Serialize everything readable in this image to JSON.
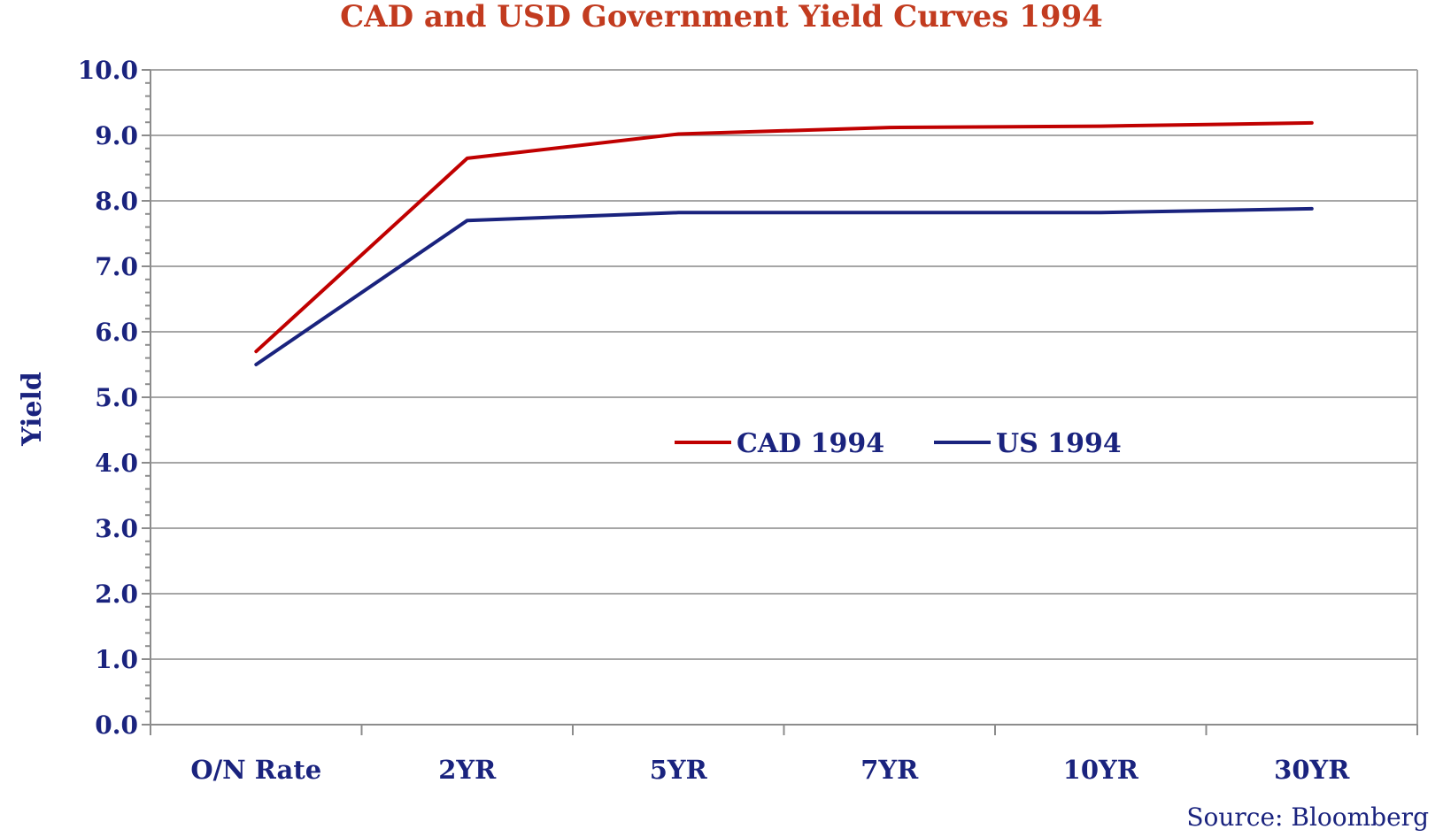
{
  "chart_data": {
    "type": "line",
    "title": "CAD and USD Government Yield Curves 1994",
    "ylabel": "Yield",
    "xlabel": "",
    "categories": [
      "O/N Rate",
      "2YR",
      "5YR",
      "7YR",
      "10YR",
      "30YR"
    ],
    "ylim": [
      0,
      10
    ],
    "yticks": [
      "0.0",
      "1.0",
      "2.0",
      "3.0",
      "4.0",
      "5.0",
      "6.0",
      "7.0",
      "8.0",
      "9.0",
      "10.0"
    ],
    "series": [
      {
        "name": "CAD 1994",
        "color": "#c00000",
        "values": [
          5.7,
          8.65,
          9.02,
          9.12,
          9.14,
          9.19
        ]
      },
      {
        "name": "US 1994",
        "color": "#1a237e",
        "values": [
          5.5,
          7.7,
          7.82,
          7.82,
          7.82,
          7.88
        ]
      }
    ],
    "grid": true,
    "legend_position": "center-right",
    "source": "Source: Bloomberg"
  }
}
